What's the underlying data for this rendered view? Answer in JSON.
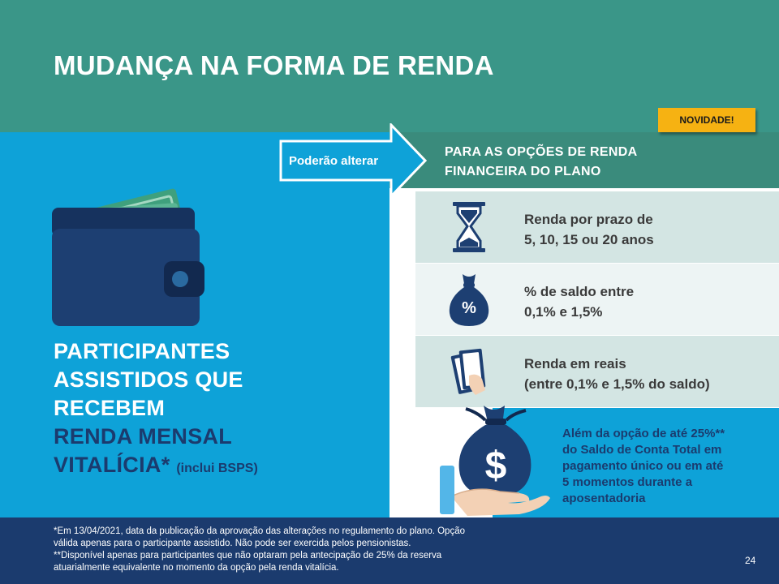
{
  "header": {
    "title": "MUDANÇA NA FORMA DE RENDA"
  },
  "badge": {
    "label": "NOVIDADE!"
  },
  "arrow": {
    "label": "Poderão alterar"
  },
  "right_heading": {
    "line1": "PARA AS OPÇÕES  DE RENDA",
    "line2": "FINANCEIRA  DO PLANO"
  },
  "participants": {
    "line1": "PARTICIPANTES",
    "line2": "ASSISTIDOS  QUE",
    "line3": "RECEBEM",
    "line4": "RENDA MENSAL",
    "line5": "VITALÍCIA*",
    "note": "(inclui  BSPS)"
  },
  "options": [
    {
      "line1": "Renda por prazo de",
      "line2": "5, 10, 15 ou 20 anos",
      "icon": "hourglass-icon"
    },
    {
      "line1": "% de saldo entre",
      "line2": "0,1% e 1,5%",
      "icon": "percent-bag-icon"
    },
    {
      "line1": "Renda em reais",
      "line2": "(entre 0,1% e 1,5% do saldo)",
      "icon": "cash-hand-icon"
    }
  ],
  "extra": {
    "line1": "Além da opção de até 25%**",
    "line2": "do Saldo de Conta Total em",
    "line3": "pagamento único ou em até",
    "line4": "5 momentos durante a",
    "line5": "aposentadoria"
  },
  "footer": {
    "line1": "*Em 13/04/2021, data da publicação da aprovação  das alterações no regulamento do plano. Opção",
    "line2": "válida apenas para o participante assistido. Não pode ser exercida pelos pensionistas.",
    "line3": "**Disponível  apenas para participantes que não optaram pela antecipação de 25% da reserva",
    "line4": "atuarialmente equivalente  no momento da opção pela renda vitalícia.",
    "page_number": "24"
  },
  "colors": {
    "header": "#3a9688",
    "left_panel": "#0ea2d8",
    "navy": "#1b3b6e",
    "badge": "#f6b212",
    "option_dark": "#d3e5e3",
    "option_light": "#edf4f4"
  }
}
